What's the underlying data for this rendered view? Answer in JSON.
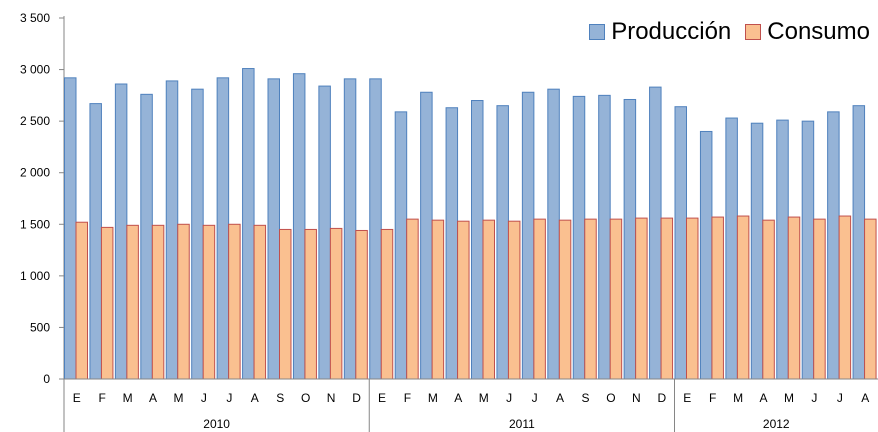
{
  "chart_data": {
    "type": "bar",
    "title": "",
    "xlabel": "",
    "ylabel": "",
    "ylim": [
      0,
      3500
    ],
    "yticks": [
      0,
      500,
      1000,
      1500,
      2000,
      2500,
      3000,
      3500
    ],
    "ytick_labels": [
      "0",
      "500",
      "1 000",
      "1 500",
      "2 000",
      "2 500",
      "3 000",
      "3 500"
    ],
    "grid": false,
    "legend_position": "top-right",
    "years": [
      {
        "label": "2010",
        "months": 12
      },
      {
        "label": "2011",
        "months": 12
      },
      {
        "label": "2012",
        "months": 8
      }
    ],
    "categories": [
      "E",
      "F",
      "M",
      "A",
      "M",
      "J",
      "J",
      "A",
      "S",
      "O",
      "N",
      "D",
      "E",
      "F",
      "M",
      "A",
      "M",
      "J",
      "J",
      "A",
      "S",
      "O",
      "N",
      "D",
      "E",
      "F",
      "M",
      "A",
      "M",
      "J",
      "J",
      "A"
    ],
    "series": [
      {
        "name": "Producción",
        "fill": "#95b3d7",
        "stroke": "#4f81bd",
        "values": [
          2920,
          2670,
          2860,
          2760,
          2890,
          2810,
          2920,
          3010,
          2910,
          2960,
          2840,
          2910,
          2910,
          2590,
          2780,
          2630,
          2700,
          2650,
          2780,
          2810,
          2740,
          2750,
          2710,
          2830,
          2640,
          2400,
          2530,
          2480,
          2510,
          2500,
          2590,
          2650
        ]
      },
      {
        "name": "Consumo",
        "fill": "#fac090",
        "stroke": "#c0504d",
        "values": [
          1520,
          1470,
          1490,
          1490,
          1500,
          1490,
          1500,
          1490,
          1450,
          1450,
          1460,
          1440,
          1450,
          1550,
          1540,
          1530,
          1540,
          1530,
          1550,
          1540,
          1550,
          1550,
          1560,
          1560,
          1560,
          1570,
          1580,
          1540,
          1570,
          1550,
          1580,
          1550
        ]
      }
    ]
  }
}
